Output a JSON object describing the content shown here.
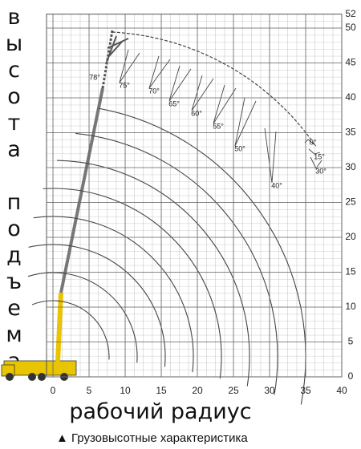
{
  "chart_data": {
    "type": "line",
    "y_label": "высота подъема",
    "x_label": "рабочий радиус",
    "footnote": "▲ Грузовысотные характеристика",
    "annotations": [
      "78°",
      "75°",
      "70°",
      "65°",
      "60°",
      "55°",
      "50°",
      "40°",
      "0°",
      "15°",
      "30°"
    ],
    "xlim": [
      0,
      40
    ],
    "xticks": [
      0,
      5,
      10,
      15,
      20,
      25,
      30,
      35,
      40
    ],
    "ylim": [
      0,
      52
    ],
    "yticks": [
      0,
      5,
      10,
      15,
      20,
      25,
      30,
      35,
      40,
      45,
      50,
      52
    ],
    "grid": true
  }
}
